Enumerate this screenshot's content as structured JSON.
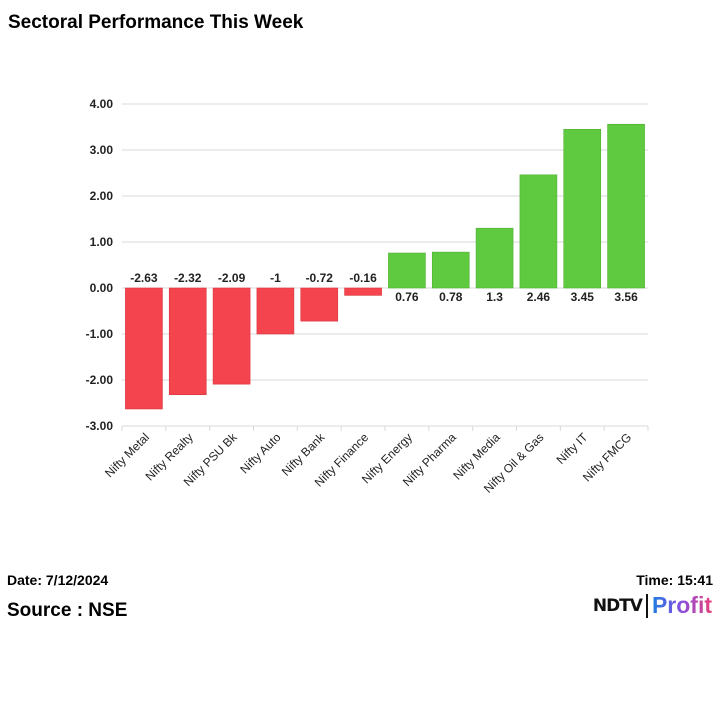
{
  "title": "Sectoral Performance This Week",
  "chart_data": {
    "type": "bar",
    "categories": [
      "Nifty Metal",
      "Nifty Realty",
      "Nifty PSU Bk",
      "Nifty Auto",
      "Nifty Bank",
      "Nifty Finance",
      "Nifty Energy",
      "Nifty Pharma",
      "Nifty Media",
      "Nifty Oil & Gas",
      "Nifty IT",
      "Nifty FMCG"
    ],
    "values": [
      -2.63,
      -2.32,
      -2.09,
      -1,
      -0.72,
      -0.16,
      0.76,
      0.78,
      1.3,
      2.46,
      3.45,
      3.56
    ],
    "data_labels": [
      "-2.63",
      "-2.32",
      "-2.09",
      "-1",
      "-0.72",
      "-0.16",
      "0.76",
      "0.78",
      "1.3",
      "2.46",
      "3.45",
      "3.56"
    ],
    "ylim": [
      -3,
      4
    ],
    "yticks": [
      "4.00",
      "3.00",
      "2.00",
      "1.00",
      "0.00",
      "-1.00",
      "-2.00",
      "-3.00"
    ],
    "grid": true,
    "colors": {
      "negative": "#f4444e",
      "positive": "#5fca3f"
    }
  },
  "footer": {
    "date": "Date: 7/12/2024",
    "time": "Time: 15:41",
    "source": "Source : NSE",
    "logo_left": "NDTV",
    "logo_right": "Profit"
  }
}
